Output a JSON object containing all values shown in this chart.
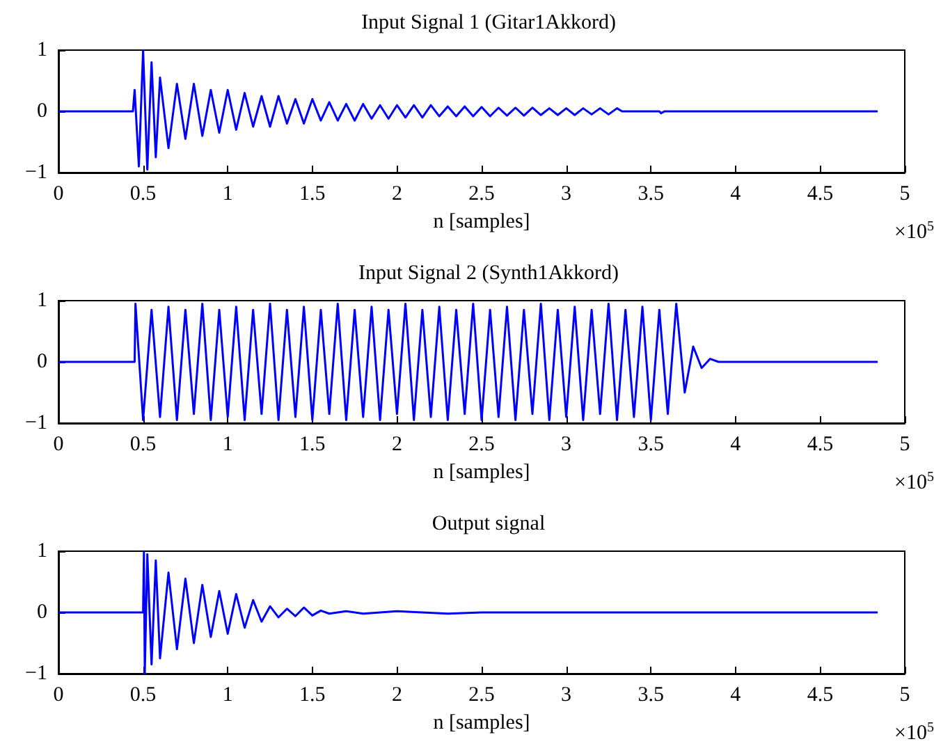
{
  "chart_data": [
    {
      "type": "line",
      "title": "Input Signal 1 (Gitar1Akkord)",
      "xlabel": "n [samples]",
      "annotations": [
        "×10$^{5}$"
      ],
      "color": "#0000ff",
      "xlim": [
        0,
        5
      ],
      "ylim": [
        -1,
        1
      ],
      "yticks": [
        -1,
        0,
        1
      ],
      "grid": false,
      "xticks": [
        0,
        0.5,
        1,
        1.5,
        2,
        2.5,
        3,
        3.5,
        4,
        4.5,
        5
      ],
      "x": [
        0,
        0.44,
        0.45,
        0.475,
        0.5,
        0.525,
        0.55,
        0.575,
        0.6,
        0.65,
        0.7,
        0.75,
        0.8,
        0.85,
        0.9,
        0.95,
        1.0,
        1.05,
        1.1,
        1.15,
        1.2,
        1.25,
        1.3,
        1.35,
        1.4,
        1.45,
        1.5,
        1.55,
        1.6,
        1.65,
        1.7,
        1.75,
        1.8,
        1.85,
        1.9,
        1.95,
        2.0,
        2.05,
        2.1,
        2.15,
        2.2,
        2.25,
        2.3,
        2.35,
        2.4,
        2.45,
        2.5,
        2.55,
        2.6,
        2.65,
        2.7,
        2.75,
        2.8,
        2.85,
        2.9,
        2.95,
        3.0,
        3.05,
        3.1,
        3.15,
        3.2,
        3.25,
        3.3,
        3.33,
        3.55,
        3.56,
        3.58,
        4.84
      ],
      "values": [
        0,
        0,
        0.35,
        -0.9,
        1.0,
        -0.95,
        0.8,
        -0.75,
        0.55,
        -0.6,
        0.45,
        -0.45,
        0.45,
        -0.4,
        0.35,
        -0.35,
        0.35,
        -0.3,
        0.3,
        -0.25,
        0.25,
        -0.25,
        0.25,
        -0.2,
        0.2,
        -0.2,
        0.2,
        -0.15,
        0.15,
        -0.15,
        0.12,
        -0.15,
        0.12,
        -0.12,
        0.1,
        -0.12,
        0.1,
        -0.1,
        0.1,
        -0.1,
        0.1,
        -0.08,
        0.08,
        -0.08,
        0.08,
        -0.08,
        0.07,
        -0.08,
        0.06,
        -0.07,
        0.06,
        -0.07,
        0.06,
        -0.06,
        0.05,
        -0.06,
        0.05,
        -0.06,
        0.05,
        -0.05,
        0.05,
        -0.05,
        0.05,
        0,
        0,
        -0.03,
        0,
        0
      ]
    },
    {
      "type": "line",
      "title": "Input Signal 2 (Synth1Akkord)",
      "xlabel": "n [samples]",
      "annotations": [
        "×10$^{5}$"
      ],
      "color": "#0000ff",
      "xlim": [
        0,
        5
      ],
      "ylim": [
        -1,
        1
      ],
      "yticks": [
        -1,
        0,
        1
      ],
      "grid": false,
      "xticks": [
        0,
        0.5,
        1,
        1.5,
        2,
        2.5,
        3,
        3.5,
        4,
        4.5,
        5
      ],
      "x": [
        0,
        0.45,
        0.455,
        0.5,
        0.55,
        0.6,
        0.65,
        0.7,
        0.75,
        0.8,
        0.85,
        0.9,
        0.95,
        1.0,
        1.05,
        1.1,
        1.15,
        1.2,
        1.25,
        1.3,
        1.35,
        1.4,
        1.45,
        1.5,
        1.55,
        1.6,
        1.65,
        1.7,
        1.75,
        1.8,
        1.85,
        1.9,
        1.95,
        2.0,
        2.05,
        2.1,
        2.15,
        2.2,
        2.25,
        2.3,
        2.35,
        2.4,
        2.45,
        2.5,
        2.55,
        2.6,
        2.65,
        2.7,
        2.75,
        2.8,
        2.85,
        2.9,
        2.95,
        3.0,
        3.05,
        3.1,
        3.15,
        3.2,
        3.25,
        3.3,
        3.35,
        3.4,
        3.45,
        3.5,
        3.55,
        3.6,
        3.65,
        3.7,
        3.75,
        3.8,
        3.85,
        3.9,
        4.84
      ],
      "values": [
        0,
        0,
        0.95,
        -0.95,
        0.85,
        -0.9,
        0.9,
        -0.95,
        0.85,
        -0.85,
        0.95,
        -0.95,
        0.85,
        -0.9,
        0.9,
        -0.95,
        0.85,
        -0.85,
        0.95,
        -0.95,
        0.85,
        -0.9,
        0.9,
        -0.95,
        0.85,
        -0.85,
        0.95,
        -0.95,
        0.85,
        -0.9,
        0.9,
        -0.95,
        0.85,
        -0.85,
        0.95,
        -0.95,
        0.85,
        -0.9,
        0.9,
        -0.95,
        0.85,
        -0.85,
        0.95,
        -0.95,
        0.85,
        -0.9,
        0.9,
        -0.95,
        0.85,
        -0.85,
        0.95,
        -0.95,
        0.85,
        -0.9,
        0.9,
        -0.95,
        0.85,
        -0.85,
        0.95,
        -0.95,
        0.85,
        -0.9,
        0.9,
        -0.95,
        0.85,
        -0.85,
        0.95,
        -0.5,
        0.25,
        -0.1,
        0.05,
        0,
        0
      ]
    },
    {
      "type": "line",
      "title": "Output signal",
      "xlabel": "n [samples]",
      "annotations": [
        "×10$^{5}$"
      ],
      "color": "#0000ff",
      "xlim": [
        0,
        5
      ],
      "ylim": [
        -1,
        1
      ],
      "yticks": [
        -1,
        0,
        1
      ],
      "grid": false,
      "xticks": [
        0,
        0.5,
        1,
        1.5,
        2,
        2.5,
        3,
        3.5,
        4,
        4.5,
        5
      ],
      "x": [
        0,
        0.5,
        0.505,
        0.51,
        0.525,
        0.55,
        0.575,
        0.6,
        0.65,
        0.7,
        0.75,
        0.8,
        0.85,
        0.9,
        0.95,
        1.0,
        1.05,
        1.1,
        1.15,
        1.2,
        1.25,
        1.3,
        1.35,
        1.4,
        1.45,
        1.5,
        1.55,
        1.6,
        1.7,
        1.8,
        2.0,
        2.3,
        2.5,
        4.84
      ],
      "values": [
        0,
        0,
        1.0,
        -1.0,
        0.95,
        -0.85,
        0.85,
        -0.75,
        0.65,
        -0.6,
        0.55,
        -0.5,
        0.45,
        -0.4,
        0.35,
        -0.35,
        0.3,
        -0.25,
        0.2,
        -0.15,
        0.1,
        -0.08,
        0.06,
        -0.06,
        0.08,
        -0.05,
        0.03,
        -0.02,
        0.02,
        -0.02,
        0.02,
        -0.02,
        0,
        0
      ]
    }
  ]
}
